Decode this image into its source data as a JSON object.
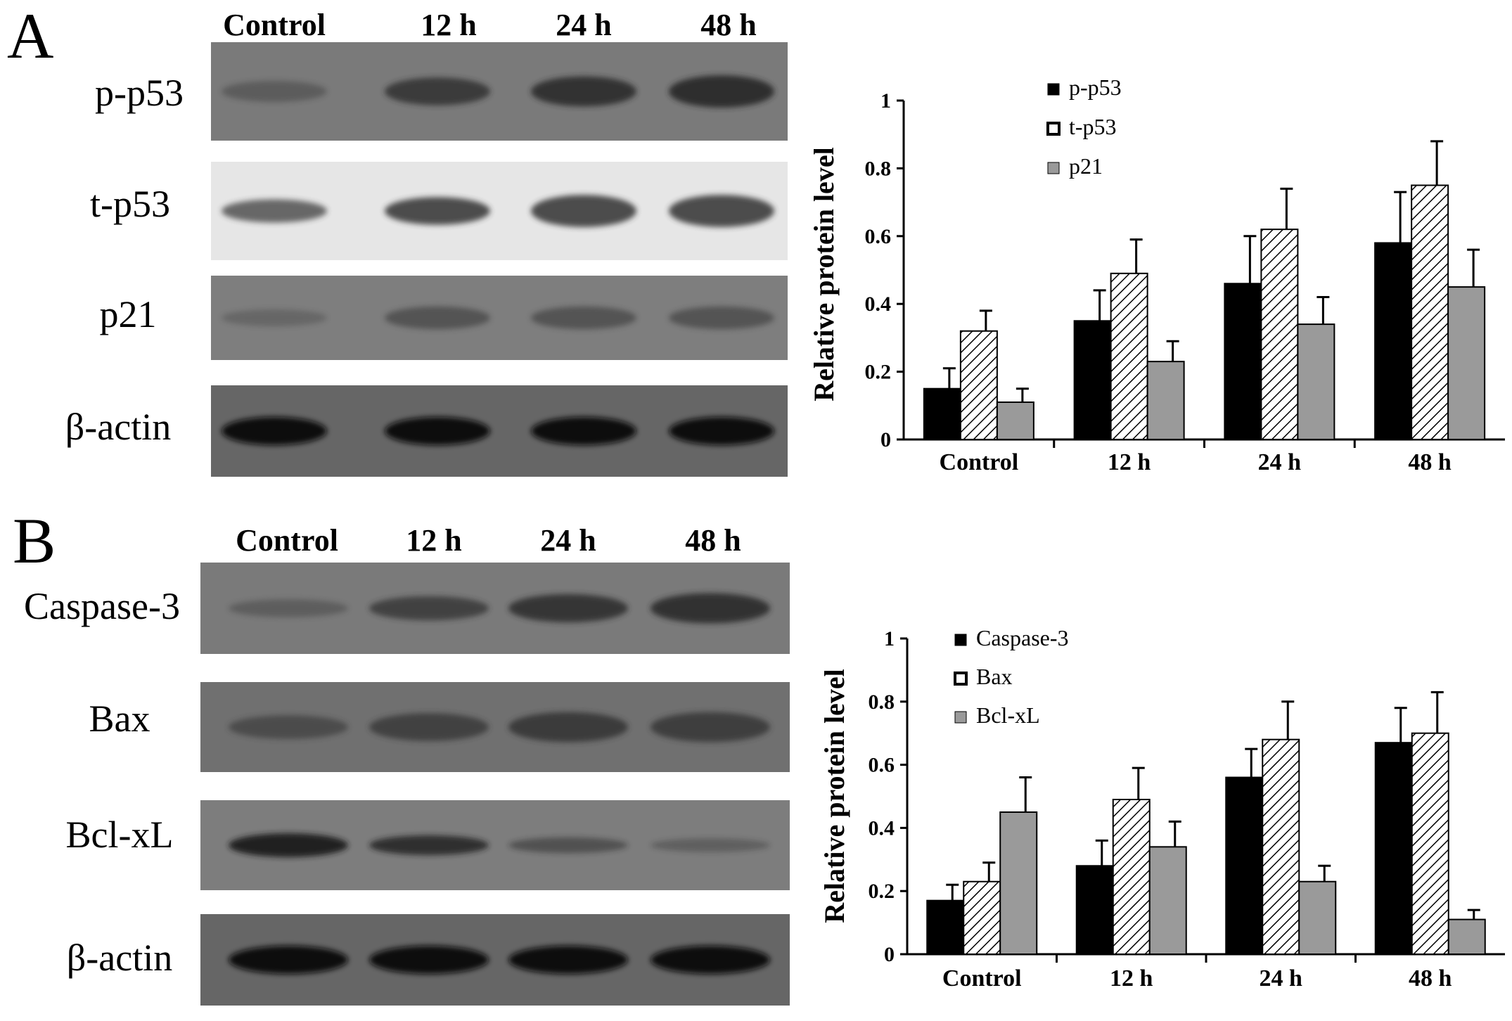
{
  "panels": [
    {
      "letter": "A",
      "blot": {
        "lanes": [
          "Control",
          "12 h",
          "24 h",
          "48 h"
        ],
        "rows": [
          {
            "label": "p-p53",
            "bg": "#7a7a7a",
            "band": "#262626",
            "intensity": [
              0.35,
              0.75,
              0.85,
              0.9
            ],
            "thickness": [
              0.35,
              0.5,
              0.55,
              0.6
            ]
          },
          {
            "label": "t-p53",
            "bg": "#e6e6e6",
            "band": "#333333",
            "intensity": [
              0.7,
              0.85,
              0.85,
              0.85
            ],
            "thickness": [
              0.4,
              0.5,
              0.6,
              0.6
            ]
          },
          {
            "label": "p21",
            "bg": "#7e7e7e",
            "band": "#333333",
            "intensity": [
              0.3,
              0.55,
              0.55,
              0.55
            ],
            "thickness": [
              0.3,
              0.45,
              0.45,
              0.45
            ]
          },
          {
            "label": "β-actin",
            "bg": "#666666",
            "band": "#111111",
            "intensity": [
              1,
              1,
              1,
              1
            ],
            "thickness": [
              0.55,
              0.55,
              0.55,
              0.55
            ]
          }
        ]
      },
      "chart_data": {
        "type": "bar",
        "categories": [
          "Control",
          "12 h",
          "24 h",
          "48 h"
        ],
        "ylabel": "Relative protein level",
        "ylim": [
          0,
          1
        ],
        "yticks": [
          "0",
          "0.2",
          "0.4",
          "0.6",
          "0.8",
          "1"
        ],
        "legend_position": "top-center",
        "series": [
          {
            "name": "p-p53",
            "fill": "solid-black",
            "values": [
              0.15,
              0.35,
              0.46,
              0.58
            ],
            "errors": [
              0.06,
              0.09,
              0.14,
              0.15
            ]
          },
          {
            "name": "t-p53",
            "fill": "hatched-white",
            "values": [
              0.32,
              0.49,
              0.62,
              0.75
            ],
            "errors": [
              0.06,
              0.1,
              0.12,
              0.13
            ]
          },
          {
            "name": "p21",
            "fill": "solid-gray",
            "values": [
              0.11,
              0.23,
              0.34,
              0.45
            ],
            "errors": [
              0.04,
              0.06,
              0.08,
              0.11
            ]
          }
        ]
      }
    },
    {
      "letter": "B",
      "blot": {
        "lanes": [
          "Control",
          "12 h",
          "24 h",
          "48 h"
        ],
        "rows": [
          {
            "label": "Caspase-3",
            "bg": "#7a7a7a",
            "band": "#2b2b2b",
            "intensity": [
              0.35,
              0.7,
              0.85,
              0.9
            ],
            "thickness": [
              0.3,
              0.45,
              0.55,
              0.6
            ]
          },
          {
            "label": "Bax",
            "bg": "#707070",
            "band": "#2e2e2e",
            "intensity": [
              0.55,
              0.7,
              0.8,
              0.75
            ],
            "thickness": [
              0.45,
              0.55,
              0.6,
              0.6
            ]
          },
          {
            "label": "Bcl-xL",
            "bg": "#7d7d7d",
            "band": "#1e1e1e",
            "intensity": [
              0.95,
              0.8,
              0.45,
              0.3
            ],
            "thickness": [
              0.45,
              0.35,
              0.25,
              0.2
            ]
          },
          {
            "label": "β-actin",
            "bg": "#666666",
            "band": "#0d0d0d",
            "intensity": [
              1,
              1,
              1,
              1
            ],
            "thickness": [
              0.55,
              0.55,
              0.55,
              0.55
            ]
          }
        ]
      },
      "chart_data": {
        "type": "bar",
        "categories": [
          "Control",
          "12 h",
          "24 h",
          "48 h"
        ],
        "ylabel": "Relative protein level",
        "ylim": [
          0,
          1
        ],
        "yticks": [
          "0",
          "0.2",
          "0.4",
          "0.6",
          "0.8",
          "1"
        ],
        "legend_position": "top-center",
        "series": [
          {
            "name": "Caspase-3",
            "fill": "solid-black",
            "values": [
              0.17,
              0.28,
              0.56,
              0.67
            ],
            "errors": [
              0.05,
              0.08,
              0.09,
              0.11
            ]
          },
          {
            "name": "Bax",
            "fill": "hatched-white",
            "values": [
              0.23,
              0.49,
              0.68,
              0.7
            ],
            "errors": [
              0.06,
              0.1,
              0.12,
              0.13
            ]
          },
          {
            "name": "Bcl-xL",
            "fill": "solid-gray",
            "values": [
              0.45,
              0.34,
              0.23,
              0.11
            ],
            "errors": [
              0.11,
              0.08,
              0.05,
              0.03
            ]
          }
        ]
      }
    }
  ],
  "colors": {
    "black_bar": "#000000",
    "gray_bar": "#9a9a9a",
    "hatch": "#000000"
  }
}
